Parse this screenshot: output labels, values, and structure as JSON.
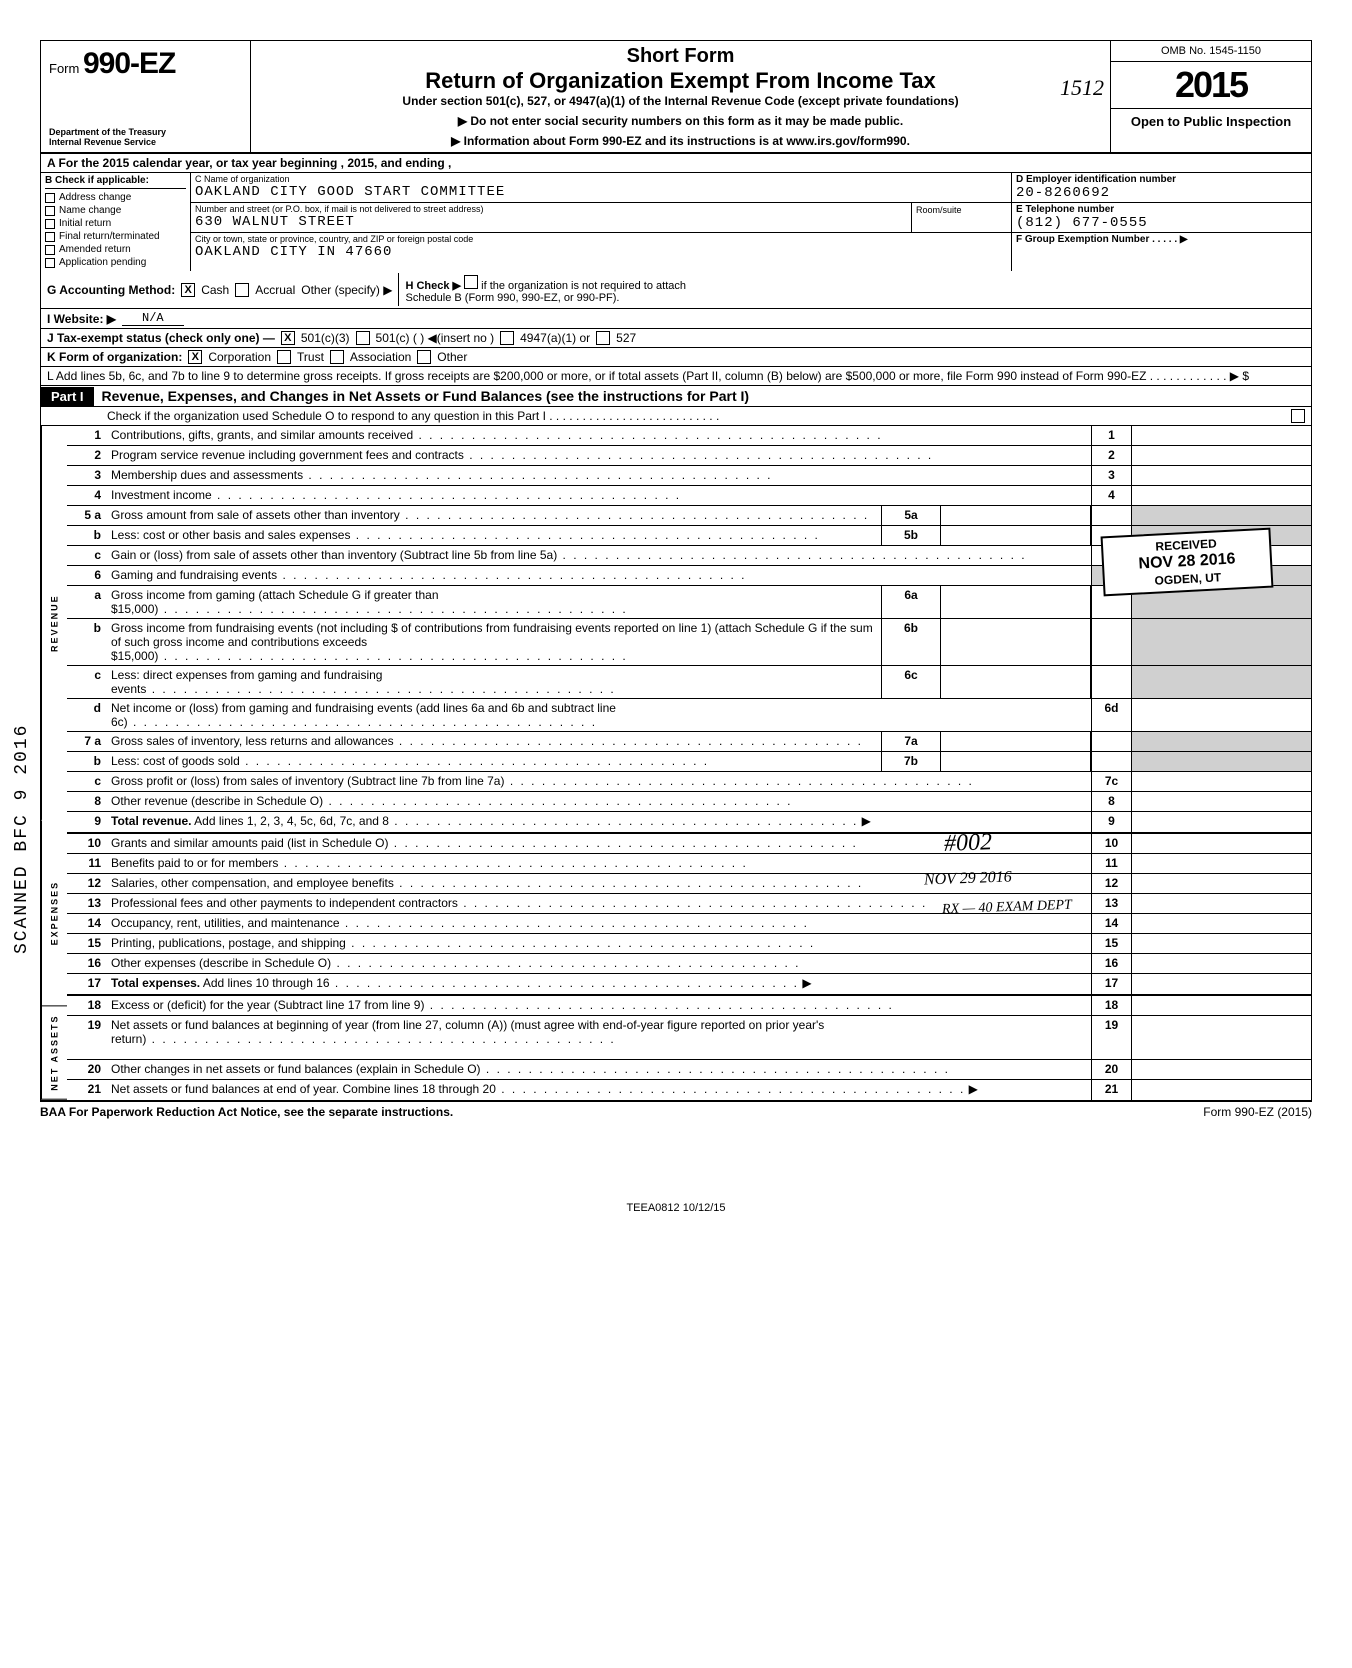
{
  "header": {
    "form_prefix": "Form",
    "form_number": "990-EZ",
    "dept1": "Department of the Treasury",
    "dept2": "Internal Revenue Service",
    "title1": "Short Form",
    "title2": "Return of Organization Exempt From Income Tax",
    "subtitle": "Under section 501(c), 527, or 4947(a)(1) of the Internal Revenue Code (except private foundations)",
    "warn": "▶ Do not enter social security numbers on this form as it may be made public.",
    "info": "▶ Information about Form 990-EZ and its instructions is at www.irs.gov/form990.",
    "handwritten": "1512",
    "omb": "OMB No. 1545-1150",
    "year": "2015",
    "open": "Open to Public Inspection"
  },
  "row_a": "A  For the 2015 calendar year, or tax year beginning                                              , 2015, and ending                              ,",
  "section_b": {
    "header": "Check if applicable:",
    "items": [
      "Address change",
      "Name change",
      "Initial return",
      "Final return/terminated",
      "Amended return",
      "Application pending"
    ]
  },
  "section_c": {
    "label": "C  Name of organization",
    "name": "OAKLAND CITY GOOD START COMMITTEE",
    "addr_label": "Number and street (or P.O. box, if mail is not delivered to street address)",
    "addr": "630 WALNUT STREET",
    "city_label": "City or town, state or province, country, and ZIP or foreign postal code",
    "city": "OAKLAND CITY                                      IN  47660",
    "room_label": "Room/suite"
  },
  "section_d": {
    "label": "D  Employer identification number",
    "value": "20-8260692"
  },
  "section_e": {
    "label": "E  Telephone number",
    "value": "(812) 677-0555"
  },
  "section_f": {
    "label": "F  Group Exemption Number . . . . .  ▶"
  },
  "line_g": {
    "label": "G  Accounting Method:",
    "cash": "Cash",
    "accrual": "Accrual",
    "other": "Other (specify) ▶",
    "h": "H  Check ▶",
    "h2": "if the organization is not required to attach Schedule B (Form 990, 990-EZ, or 990-PF)."
  },
  "line_i": {
    "label": "I   Website: ▶",
    "value": "N/A"
  },
  "line_j": {
    "label": "J   Tax-exempt status (check only one) —",
    "a": "501(c)(3)",
    "b": "501(c) (        ) ◀(insert no )",
    "c": "4947(a)(1) or",
    "d": "527"
  },
  "line_k": {
    "label": "K  Form of organization:",
    "a": "Corporation",
    "b": "Trust",
    "c": "Association",
    "d": "Other"
  },
  "line_l": "L   Add lines 5b, 6c, and 7b to line 9 to determine gross receipts. If gross receipts are $200,000 or more, or if total assets (Part II, column (B) below) are $500,000 or more, file Form 990 instead of Form 990-EZ  . . . . . . . . . . . . ▶ $",
  "part1": {
    "tag": "Part I",
    "title": "Revenue, Expenses, and Changes in Net Assets or Fund Balances (see the instructions for Part I)",
    "check": "Check if the organization used Schedule O to respond to any question in this Part I . . . . . . . . . . . . . . . . . . . . . . . . . ."
  },
  "rows": [
    {
      "n": "1",
      "t": "Contributions, gifts, grants, and similar amounts received",
      "r": "1"
    },
    {
      "n": "2",
      "t": "Program service revenue including government fees and contracts",
      "r": "2"
    },
    {
      "n": "3",
      "t": "Membership dues and assessments",
      "r": "3"
    },
    {
      "n": "4",
      "t": "Investment income",
      "r": "4"
    },
    {
      "n": "5 a",
      "t": "Gross amount from sale of assets other than inventory",
      "mini": "5a",
      "shade": true
    },
    {
      "n": "b",
      "t": "Less: cost or other basis and sales expenses",
      "mini": "5b",
      "shade": true
    },
    {
      "n": "c",
      "t": "Gain or (loss) from sale of assets other than inventory (Subtract line 5b from line 5a)",
      "r": "5c"
    },
    {
      "n": "6",
      "t": "Gaming and fundraising events",
      "shade": true,
      "noR": true
    },
    {
      "n": "a",
      "t": "Gross income from gaming (attach Schedule G if greater than $15,000)",
      "mini": "6a",
      "shade": true
    },
    {
      "n": "b",
      "t": "Gross income from fundraising events (not including    $                         of contributions from fundraising events reported on line 1) (attach Schedule G if the sum of such gross income and contributions exceeds $15,000)",
      "mini": "6b",
      "shade": true,
      "tall": true
    },
    {
      "n": "c",
      "t": "Less: direct expenses from gaming and fundraising events",
      "mini": "6c",
      "shade": true
    },
    {
      "n": "d",
      "t": "Net income or (loss) from gaming and fundraising events (add lines 6a and 6b and subtract line 6c)",
      "r": "6d"
    },
    {
      "n": "7 a",
      "t": "Gross sales of inventory, less returns and allowances",
      "mini": "7a",
      "shade": true
    },
    {
      "n": "b",
      "t": "Less: cost of goods sold",
      "mini": "7b",
      "shade": true
    },
    {
      "n": "c",
      "t": "Gross profit or (loss) from sales of inventory (Subtract line 7b from line 7a)",
      "r": "7c"
    },
    {
      "n": "8",
      "t": "Other revenue (describe in Schedule O)",
      "r": "8"
    },
    {
      "n": "9",
      "t": "Total revenue. Add lines 1, 2, 3, 4, 5c, 6d, 7c, and 8",
      "r": "9",
      "bold": true,
      "arrow": true
    }
  ],
  "exp_rows": [
    {
      "n": "10",
      "t": "Grants and similar amounts paid (list in Schedule O)",
      "r": "10"
    },
    {
      "n": "11",
      "t": "Benefits paid to or for members",
      "r": "11"
    },
    {
      "n": "12",
      "t": "Salaries, other compensation, and employee benefits",
      "r": "12"
    },
    {
      "n": "13",
      "t": "Professional fees and other payments to independent contractors",
      "r": "13"
    },
    {
      "n": "14",
      "t": "Occupancy, rent, utilities, and maintenance",
      "r": "14"
    },
    {
      "n": "15",
      "t": "Printing, publications, postage, and shipping",
      "r": "15"
    },
    {
      "n": "16",
      "t": "Other expenses (describe in Schedule O)",
      "r": "16"
    },
    {
      "n": "17",
      "t": "Total expenses. Add lines 10 through 16",
      "r": "17",
      "bold": true,
      "arrow": true
    }
  ],
  "net_rows": [
    {
      "n": "18",
      "t": "Excess or (deficit) for the year (Subtract line 17 from line 9)",
      "r": "18"
    },
    {
      "n": "19",
      "t": "Net assets or fund balances at beginning of year (from line 27, column (A)) (must agree with end-of-year figure reported on prior year's return)",
      "r": "19",
      "tall": true
    },
    {
      "n": "20",
      "t": "Other changes in net assets or fund balances (explain in Schedule O)",
      "r": "20"
    },
    {
      "n": "21",
      "t": "Net assets or fund balances at end of year. Combine lines 18 through 20",
      "r": "21",
      "arrow": true
    }
  ],
  "side_labels": {
    "rev": "REVENUE",
    "exp": "EXPENSES",
    "net": "NET ASSETS"
  },
  "footer": {
    "left": "BAA  For Paperwork Reduction Act Notice, see the separate instructions.",
    "right": "Form 990-EZ (2015)",
    "code": "TEEA0812  10/12/15"
  },
  "stamps": {
    "received_top": "RECEIVED",
    "received_date": "NOV 28 2016",
    "received_loc": "OGDEN, UT",
    "hash": "#002",
    "date2": "NOV 29 2016",
    "dept": "RX — 40 EXAM DEPT",
    "scanned": "SCANNED BFC 9 2016"
  },
  "colors": {
    "text": "#000000",
    "bg": "#ffffff",
    "shade": "#d0d0d0"
  }
}
